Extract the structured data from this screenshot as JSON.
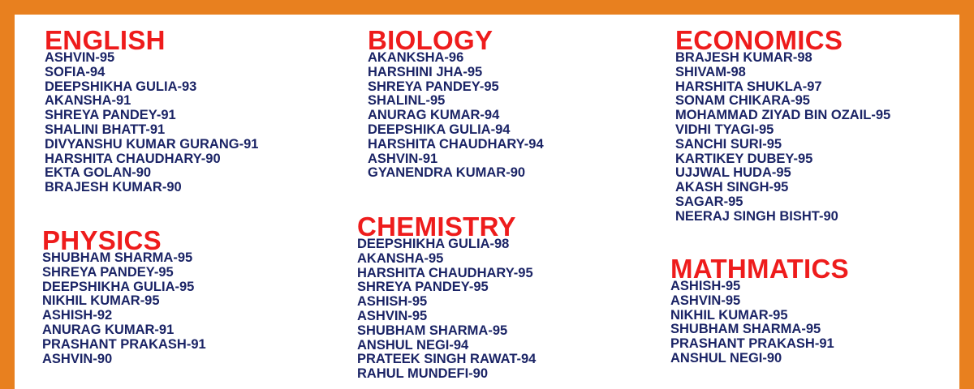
{
  "sections": [
    {
      "title": "ENGLISH",
      "entries": [
        "ASHVIN-95",
        "SOFIA-94",
        "DEEPSHIKHA GULIA-93",
        "AKANSHA-91",
        "SHREYA PANDEY-91",
        "SHALINI BHATT-91",
        "DIVYANSHU KUMAR GURANG-91",
        "HARSHITA CHAUDHARY-90",
        "EKTA GOLAN-90",
        "BRAJESH KUMAR-90"
      ]
    },
    {
      "title": "PHYSICS",
      "entries": [
        "SHUBHAM SHARMA-95",
        "SHREYA PANDEY-95",
        "DEEPSHIKHA GULIA-95",
        "NIKHIL KUMAR-95",
        "ASHISH-92",
        "ANURAG KUMAR-91",
        "PRASHANT PRAKASH-91",
        "ASHVIN-90"
      ]
    },
    {
      "title": "BIOLOGY",
      "entries": [
        "AKANKSHA-96",
        "HARSHINI JHA-95",
        "SHREYA PANDEY-95",
        "SHALINL-95",
        "ANURAG KUMAR-94",
        "DEEPSHIKA GULIA-94",
        "HARSHITA CHAUDHARY-94",
        "ASHVIN-91",
        "GYANENDRA KUMAR-90"
      ]
    },
    {
      "title": "CHEMISTRY",
      "entries": [
        "DEEPSHIKHA GULIA-98",
        "AKANSHA-95",
        "HARSHITA CHAUDHARY-95",
        "SHREYA PANDEY-95",
        "ASHISH-95",
        "ASHVIN-95",
        "SHUBHAM SHARMA-95",
        "ANSHUL NEGI-94",
        "PRATEEK SINGH RAWAT-94",
        "RAHUL MUNDEFI-90"
      ]
    },
    {
      "title": "ECONOMICS",
      "entries": [
        "BRAJESH KUMAR-98",
        "SHIVAM-98",
        "HARSHITA SHUKLA-97",
        "SONAM CHIKARA-95",
        "MOHAMMAD ZIYAD BIN OZAIL-95",
        "VIDHI TYAGI-95",
        "SANCHI SURI-95",
        "KARTIKEY DUBEY-95",
        "UJJWAL HUDA-95",
        "AKASH SINGH-95",
        "SAGAR-95",
        "NEERAJ SINGH BISHT-90"
      ]
    },
    {
      "title": "MATHMATICS",
      "entries": [
        "ASHISH-95",
        "ASHVIN-95",
        "NIKHIL KUMAR-95",
        "SHUBHAM SHARMA-95",
        "PRASHANT PRAKASH-91",
        "ANSHUL NEGI-90"
      ]
    }
  ]
}
